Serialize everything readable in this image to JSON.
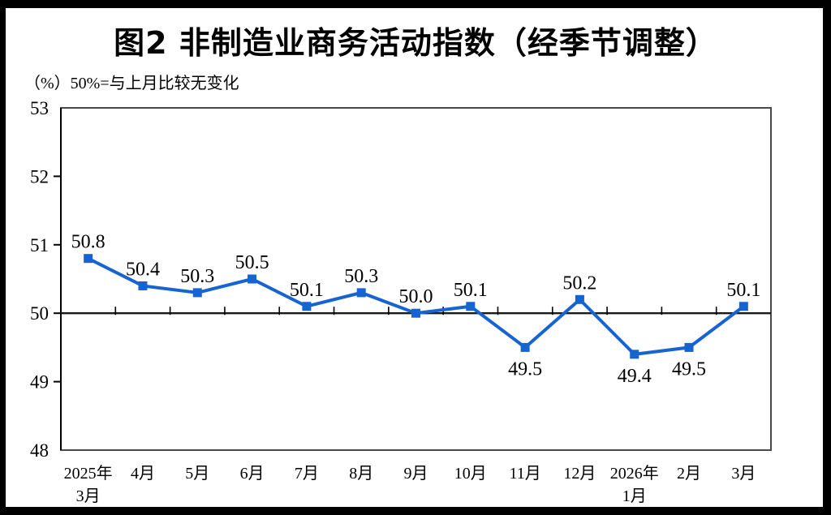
{
  "page": {
    "title": "图2 非制造业商务活动指数（经季节调整）",
    "subtitle": "（%）50%=与上月比较无变化"
  },
  "chart_data": {
    "type": "line",
    "title": "图2 非制造业商务活动指数（经季节调整）",
    "unit_note": "（%）50%=与上月比较无变化",
    "categories": [
      "2025年\n3月",
      "4月",
      "5月",
      "6月",
      "7月",
      "8月",
      "9月",
      "10月",
      "11月",
      "12月",
      "2026年\n1月",
      "2月",
      "3月"
    ],
    "values": [
      50.8,
      50.4,
      50.3,
      50.5,
      50.1,
      50.3,
      50.0,
      50.1,
      49.5,
      50.2,
      49.4,
      49.5,
      50.1
    ],
    "data_labels": [
      "50.8",
      "50.4",
      "50.3",
      "50.5",
      "50.1",
      "50.3",
      "50.0",
      "50.1",
      "49.5",
      "50.2",
      "49.4",
      "49.5",
      "50.1"
    ],
    "labels_below_indices": [
      8,
      10,
      11
    ],
    "ylabel": "",
    "xlabel": "",
    "ylim": [
      48,
      53
    ],
    "ytick_step": 1,
    "yticks": [
      48,
      49,
      50,
      51,
      52,
      53
    ],
    "reference_line": 50,
    "grid": false,
    "legend": "none",
    "marker": "square",
    "colors": {
      "line": "#1663d2",
      "marker": "#1663d2",
      "text": "#000000",
      "frame": "#4a4a4a",
      "axis": "#000000",
      "reference": "#1a1a1a",
      "page_border": "#000000",
      "background": "#ffffff"
    }
  }
}
